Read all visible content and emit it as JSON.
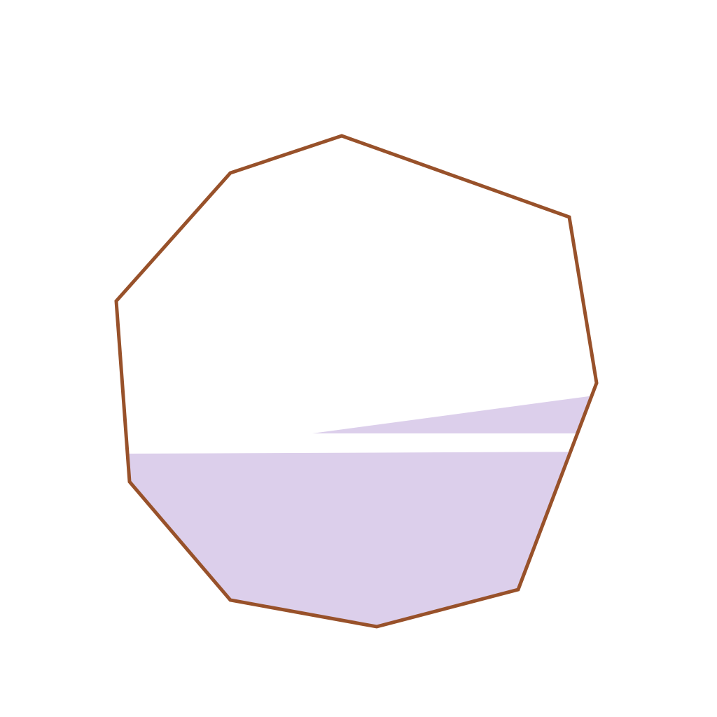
{
  "diagram": {
    "shape": "nonagon",
    "outline_color": "#98512a",
    "fill_color": "#dccfeb",
    "background_color": "#ffffff"
  }
}
